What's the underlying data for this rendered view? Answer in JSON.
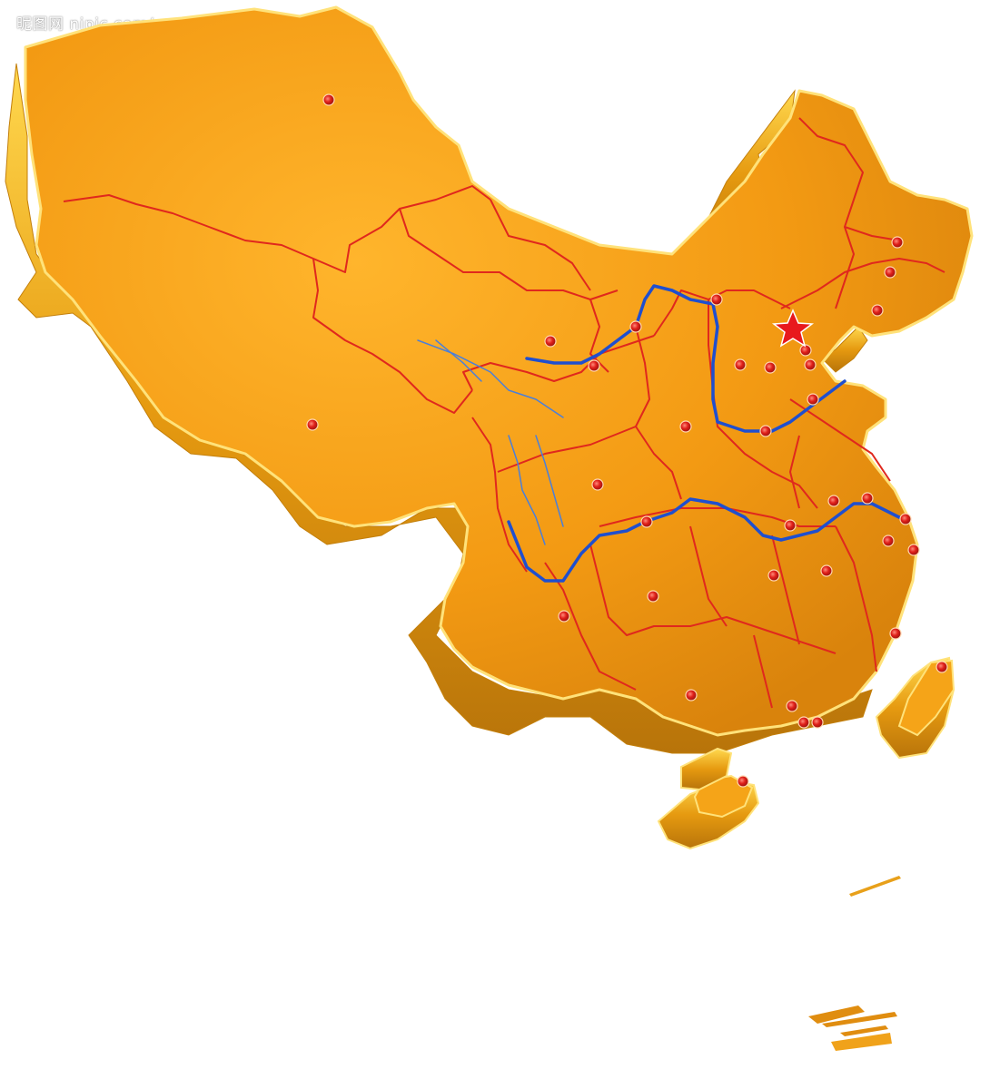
{
  "watermark": {
    "text": "昵图网 nipic.com/ wewell00"
  },
  "colors": {
    "land": "#f39a13",
    "land_light": "#ffbf3a",
    "extrusion": "#d88e0d",
    "extrusion_light": "#ffd44a",
    "rim": "#ffe27a",
    "province_border": "#e0281d",
    "river": "#1f4fcf",
    "river_thin": "#4b7fd9",
    "marker": "#e0201a",
    "capital_star": "#e8191d"
  },
  "map": {
    "projection": "3D extruded map, tilted",
    "capital_marker": "star-icon",
    "city_marker": "red-dot-icon",
    "rivers": 2
  }
}
